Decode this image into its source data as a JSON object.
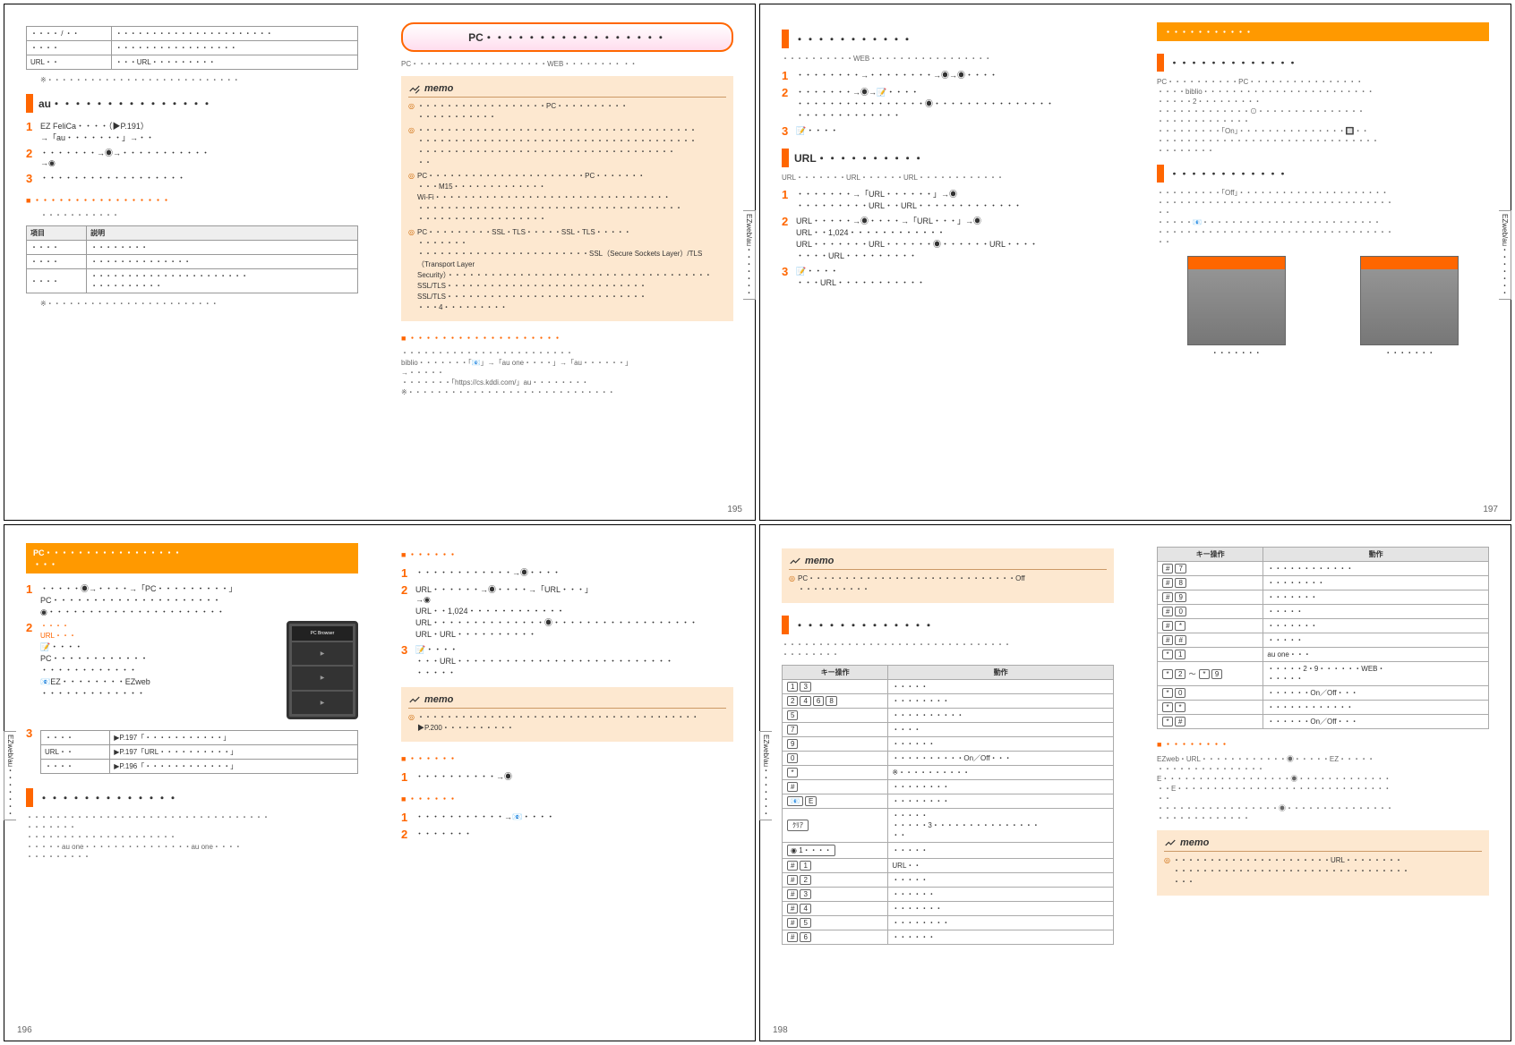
{
  "sideTab": "EZweb/au・・・・・・・",
  "p195": {
    "tableCols": [
      "項目",
      "説明"
    ],
    "tableRows": [
      [
        "・・・・ / ・・",
        "・・・・・・・・・・・・・・・・・・・・・・"
      ],
      [
        "・・・・",
        "・・・・・・・・・・・・・・・・・"
      ],
      [
        "URL・・",
        "・・・URL・・・・・・・・・"
      ]
    ],
    "tableFoot": "※・・・・・・・・・・・・・・・・・・・・・・・・・・・",
    "auHead": "au・・・・・・・・・・・・・・・",
    "auSteps": [
      "EZ FeliCa・・・・（▶P.191）\n→「au・・・・・・・」→・・",
      "・・・・・・・→◉→・・・・・・・・・・・\n→◉",
      "・・・・・・・・・・・・・・・・・・"
    ],
    "subHead": "・・・・・・・・・・・・・・・・・",
    "subText": "・・・・・・・・・・・",
    "opCols": [
      "項目",
      "説明"
    ],
    "opRows": [
      [
        "・・・・",
        "・・・・・・・・"
      ],
      [
        "・・・・",
        "・・・・・・・・・・・・・・"
      ],
      [
        "・・・・",
        "・・・・・・・・・・・・・・・・・・・・・・\n・・・・・・・・・・"
      ]
    ],
    "opFoot": "※・・・・・・・・・・・・・・・・・・・・・・・・",
    "pcTitle": "PC・・・・・・・・・・・・・・・・・",
    "pcLead": "PC・・・・・・・・・・・・・・・・・・・WEB・・・・・・・・\n・・",
    "memoItems": [
      "・・・・・・・・・・・・・・・・・・PC・・・・・・・・・・\n・・・・・・・・・・・",
      "・・・・・・・・・・・・・・・・・・・・・・・・・・・・・・・・・・・・・・・\n・・・・・・・・・・・・・・・・・・・・・・・・・・・・・・・・・・・・・・・\n・・・・・・・・・・・・・・・・・・・・・・・・・・・・・・・・・・・・\n・・",
      "PC・・・・・・・・・・・・・・・・・・・・・・PC・・・・・・・\n・・・M15・・・・・・・・・・・・・\nWi-Fi・・・・・・・・・・・・・・・・・・・・・・・・・・・・・・・・・\n・・・・・・・・・・・・・・・・・・・・・・・・・・・・・・・・・・・・・\n・・・・・・・・・・・・・・・・・・",
      "PC・・・・・・・・・SSL・TLS・・・・・SSL・TLS・・・・・\n・・・・・・・\n・・・・・・・・・・・・・・・・・・・・・・・・SSL（Secure Sockets Layer）/TLS（Transport Layer Security）・・・・・・・・・・・・・・・・・・・・・・・・・・・・・・・・・・・・・\nSSL/TLS・・・・・・・・・・・・・・・・・・・・・・・・・・・・\nSSL/TLS・・・・・・・・・・・・・・・・・・・・・・・・・・・・\n・・・4・・・・・・・・・"
    ],
    "subHead2": "・・・・・・・・・・・・・・・・・・・",
    "sub2Text": "・・・・・・・・・・・・・・・・・・・・・・・・\nbiblio・・・・・・・「📧」→「au one・・・・」→「au・・・・・・」\n→・・・・・\n・・・・・・・「https://cs.kddi.com/」au・・・・・・・・\n※・・・・・・・・・・・・・・・・・・・・・・・・・・・・・"
  },
  "p196": {
    "head": "PC・・・・・・・・・・・・・・・・・\n・・・",
    "steps": [
      "・・・・・◉→・・・・→「PC・・・・・・・・・」\nPC・・・・・・・・・・・・・・・・・・・・・\n◉・・・・・・・・・・・・・・・・・・・・・・",
      "📝・・・・\nPC・・・・・・・・・・・・\n・・・・・・・・・・・・\n📧EZ・・・・・・・・EZweb\n・・・・・・・・・・・・・"
    ],
    "callout1": "・・・・\nURL・・・",
    "tbl3Rows": [
      [
        "・・・・",
        "▶P.197「・・・・・・・・・・・」"
      ],
      [
        "URL・・",
        "▶P.197「URL・・・・・・・・・・」"
      ],
      [
        "・・・・",
        "▶P.196「・・・・・・・・・・・・」"
      ]
    ],
    "head2": "・・・・・・・・・・・・・",
    "text2": "・・・・・・・・・・・・・・・・・・・・・・・・・・・・・・・・・・\n・・・・・・・\n・・・・・・・・・・・・・・・・・・・・・\n・・・・・au one・・・・・・・・・・・・・・・au one・・・・\n・・・・・・・・・",
    "rHead1": "・・・・・・",
    "rSteps1": [
      "・・・・・・・・・・・・→◉・・・・",
      "URL・・・・・・→◉・・・・→「URL・・・」\n→◉\nURL・・1,024・・・・・・・・・・・・\nURL・・・・・・・・・・・・・・◉・・・・・・・・・・・・・・・・・・\nURL・URL・・・・・・・・・・",
      "📝・・・・\n・・・URL・・・・・・・・・・・・・・・・・・・・・・・・・・・\n・・・・・"
    ],
    "memo2": "・・・・・・・・・・・・・・・・・・・・・・・・・・・・・・\n・・・・・・・・・▶P.200・・・・・・・・・・",
    "rHead2": "・・・・・・",
    "rStep2": "・・・・・・・・・・→◉",
    "rHead3": "・・・・・・",
    "rSteps3": [
      "・・・・・・・・・・・→📧・・・・",
      "・・・・・・・"
    ]
  },
  "p197": {
    "head1": "・・・・・・・・・・・",
    "lead1": "・・・・・・・・・・WEB・・・・・・・・・・・・・・・・・",
    "steps1": [
      "・・・・・・・・→・・・・・・・・→◉→◉・・・・",
      "・・・・・・・→◉→📝・・・・\n・・・・・・・・・・・・・・・・◉・・・・・・・・・・・・・・・\n・・・・・・・・・・・・・",
      "📝・・・・"
    ],
    "head2": "URL・・・・・・・・・・",
    "lead2": "URL・・・・・・・URL・・・・・・URL・・・・・・・・・・・・",
    "steps2": [
      "・・・・・・・→「URL・・・・・・」→◉\n・・・・・・・・・URL・・URL・・・・・・・・・・・・・",
      "URL・・・・・→◉・・・・→「URL・・・」→◉\nURL・・1,024・・・・・・・・・・・・\nURL・・・・・・・URL・・・・・・◉・・・・・・URL・・・・\n・・・・URL・・・・・・・・・",
      "📝・・・・\n・・・URL・・・・・・・・・・・"
    ],
    "rHead": "・・・・・・・・・・・",
    "rSub1": "・・・・・・・・・・・・・",
    "rText1": "PC・・・・・・・・・・PC・・・・・・・・・・・・・・・・\n・・・・biblio・・・・・・・・・・・・・・・・・・・・・・・・\n・・・・・2・・・・・・・・・\n・・・・・・・・・・・・・⊙・・・・・・・・・・・・・・・\n・・・・・・・・・・・・・\n・・・・・・・・・「On」・・・・・・・・・・・・・・・🔲・・\n・・・・・・・・・・・・・・・・・・・・・・・・・・・・・・・\n・・・・・・・・",
    "rSub2": "・・・・・・・・・・・・",
    "rText2": "・・・・・・・・・「Off」・・・・・・・・・・・・・・・・・・・・・\n・・・・・・・・・・・・・・・・・・・・・・・・・・・・・・・・・\n・・\n・・・・・📧・・・・・・・・・・・・・・・・・・・・・・・・・\n・・・・・・・・・・・・・・・・・・・・・・・・・・・・・・・・・\n・・",
    "thumbL": "・・・・・・・",
    "thumbR": "・・・・・・・"
  },
  "p198": {
    "memoTop": "PC・・・・・・・・・・・・・・・・・・・・・・・・・・・・・Off\n・・・・・・・・・・",
    "head": "・・・・・・・・・・・・・",
    "lead": "・・・・・・・・・・・・・・・・・・・・・・・・・・・・・・・・\n・・・・・・・・",
    "tblCols": [
      "キー操作",
      "動作"
    ],
    "tblRows": [
      [
        [
          "1",
          "3"
        ],
        "・・・・・"
      ],
      [
        [
          "2",
          "4",
          "6",
          "8"
        ],
        "・・・・・・・・"
      ],
      [
        [
          "5"
        ],
        "・・・・・・・・・・"
      ],
      [
        [
          "7"
        ],
        "・・・・"
      ],
      [
        [
          "9"
        ],
        "・・・・・・"
      ],
      [
        [
          "0"
        ],
        "・・・・・・・・・・On／Off・・・"
      ],
      [
        [
          "*"
        ],
        "※・・・・・・・・・・"
      ],
      [
        [
          "#"
        ],
        "・・・・・・・・"
      ],
      [
        [
          "📧",
          "E"
        ],
        "・・・・・・・・"
      ],
      [
        [
          "ｸﾘｱ"
        ],
        "・・・・・\n・・・・・3・・・・・・・・・・・・・・・\n・・"
      ],
      [
        [
          "◉ 1・・・・"
        ],
        "・・・・・"
      ],
      [
        [
          "#",
          "1"
        ],
        "URL・・"
      ],
      [
        [
          "#",
          "2"
        ],
        "・・・・・"
      ],
      [
        [
          "#",
          "3"
        ],
        "・・・・・・"
      ],
      [
        [
          "#",
          "4"
        ],
        "・・・・・・・"
      ],
      [
        [
          "#",
          "5"
        ],
        "・・・・・・・・"
      ],
      [
        [
          "#",
          "6"
        ],
        "・・・・・・"
      ]
    ],
    "tbl2Rows": [
      [
        [
          "#",
          "7"
        ],
        "・・・・・・・・・・・・"
      ],
      [
        [
          "#",
          "8"
        ],
        "・・・・・・・・"
      ],
      [
        [
          "#",
          "9"
        ],
        "・・・・・・・"
      ],
      [
        [
          "#",
          "0"
        ],
        "・・・・・"
      ],
      [
        [
          "#",
          "*"
        ],
        "・・・・・・・"
      ],
      [
        [
          "#",
          "#"
        ],
        "・・・・・"
      ],
      [
        [
          "*",
          "1"
        ],
        "au one・・・"
      ],
      [
        [
          "*",
          "2",
          "〜",
          "*",
          "9"
        ],
        "・・・・・2・9・・・・・・WEB・\n・・・・・"
      ],
      [
        [
          "*",
          "0"
        ],
        "・・・・・・On／Off・・・"
      ],
      [
        [
          "*",
          "*"
        ],
        "・・・・・・・・・・・・"
      ],
      [
        [
          "*",
          "#"
        ],
        "・・・・・・On／Off・・・"
      ]
    ],
    "rHead": "・・・・・・・・",
    "rText": "EZweb・URL・・・・・・・・・・・・◉・・・・・EZ・・・・・\n・・・・・・・・・・・・・・・\nE・・・・・・・・・・・・・・・・・・◉・・・・・・・・・・・・・\n・・E・・・・・・・・・・・・・・・・・・・・・・・・・・・・・・\n・・\n・・・・・・・・・・・・・・・・・◉・・・・・・・・・・・・・・・\n・・・・・・・・・・・・・",
    "memo2": "・・・・・・・・・・・・・・・・・・・・・・URL・・・・・・・・\n・・・・・・・・・・・・・・・・・・・・・・・・・・・・・・・・・\n・・・"
  },
  "pageNums": {
    "p195": "195",
    "p196": "196",
    "p197": "197",
    "p198": "198"
  }
}
